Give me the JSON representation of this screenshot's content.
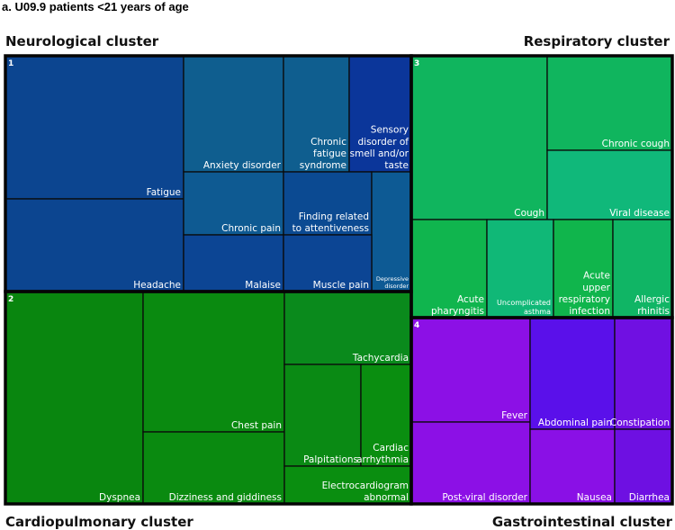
{
  "heading": "a. U09.9 patients <21 years of age",
  "cluster_titles": {
    "neurological": "Neurological cluster",
    "respiratory": "Respiratory cluster",
    "cardiopulmonary": "Cardiopulmonary cluster",
    "gastrointestinal": "Gastrointestinal cluster"
  },
  "chart_data": {
    "type": "treemap",
    "clusters": [
      {
        "number": "1",
        "name": "Neurological cluster",
        "items": [
          {
            "label": [
              "Fatigue"
            ],
            "color": "#0c4590"
          },
          {
            "label": [
              "Headache"
            ],
            "color": "#0c4590"
          },
          {
            "label": [
              "Anxiety disorder"
            ],
            "color": "#0f5e8f"
          },
          {
            "label": [
              "Chronic",
              "fatigue",
              "syndrome"
            ],
            "color": "#0f5e8f"
          },
          {
            "label": [
              "Sensory",
              "disorder of",
              "smell and/or",
              "taste"
            ],
            "color": "#0b369a"
          },
          {
            "label": [
              "Chronic pain"
            ],
            "color": "#0e5a92"
          },
          {
            "label": [
              "Finding related",
              "to attentiveness"
            ],
            "color": "#0b4a92"
          },
          {
            "label": [
              "Depressive",
              "disorder"
            ],
            "color": "#0d5a94"
          },
          {
            "label": [
              "Malaise"
            ],
            "color": "#0c4594"
          },
          {
            "label": [
              "Muscle pain"
            ],
            "color": "#0c4594"
          }
        ]
      },
      {
        "number": "2",
        "name": "Cardiopulmonary cluster",
        "items": [
          {
            "label": [
              "Dyspnea"
            ],
            "color": "#09860f"
          },
          {
            "label": [
              "Chest pain"
            ],
            "color": "#0a8a10"
          },
          {
            "label": [
              "Dizziness and giddiness"
            ],
            "color": "#0a8a10"
          },
          {
            "label": [
              "Tachycardia"
            ],
            "color": "#0a8a1c"
          },
          {
            "label": [
              "Palpitations"
            ],
            "color": "#0a8a14"
          },
          {
            "label": [
              "Cardiac",
              "arrhythmia"
            ],
            "color": "#0a8e10"
          },
          {
            "label": [
              "Electrocardiogram",
              "abnormal"
            ],
            "color": "#0a8e10"
          }
        ]
      },
      {
        "number": "3",
        "name": "Respiratory cluster",
        "items": [
          {
            "label": [
              "Cough"
            ],
            "color": "#10b55e"
          },
          {
            "label": [
              "Chronic cough"
            ],
            "color": "#10b55e"
          },
          {
            "label": [
              "Viral disease"
            ],
            "color": "#10b87a"
          },
          {
            "label": [
              "Acute",
              "pharyngitis"
            ],
            "color": "#10b54e"
          },
          {
            "label": [
              "Uncomplicated",
              "asthma"
            ],
            "color": "#10b877"
          },
          {
            "label": [
              "Acute",
              "upper",
              "respiratory",
              "infection"
            ],
            "color": "#10b54c"
          },
          {
            "label": [
              "Allergic",
              "rhinitis"
            ],
            "color": "#10b565"
          }
        ]
      },
      {
        "number": "4",
        "name": "Gastrointestinal cluster",
        "items": [
          {
            "label": [
              "Fever"
            ],
            "color": "#8c10e6"
          },
          {
            "label": [
              "Post-viral disorder"
            ],
            "color": "#8c10e6"
          },
          {
            "label": [
              "Abdominal pain"
            ],
            "color": "#5a10ea"
          },
          {
            "label": [
              "Constipation"
            ],
            "color": "#7010e2"
          },
          {
            "label": [
              "Nausea"
            ],
            "color": "#8a10e6"
          },
          {
            "label": [
              "Diarrhea"
            ],
            "color": "#6e10e2"
          }
        ]
      }
    ]
  }
}
